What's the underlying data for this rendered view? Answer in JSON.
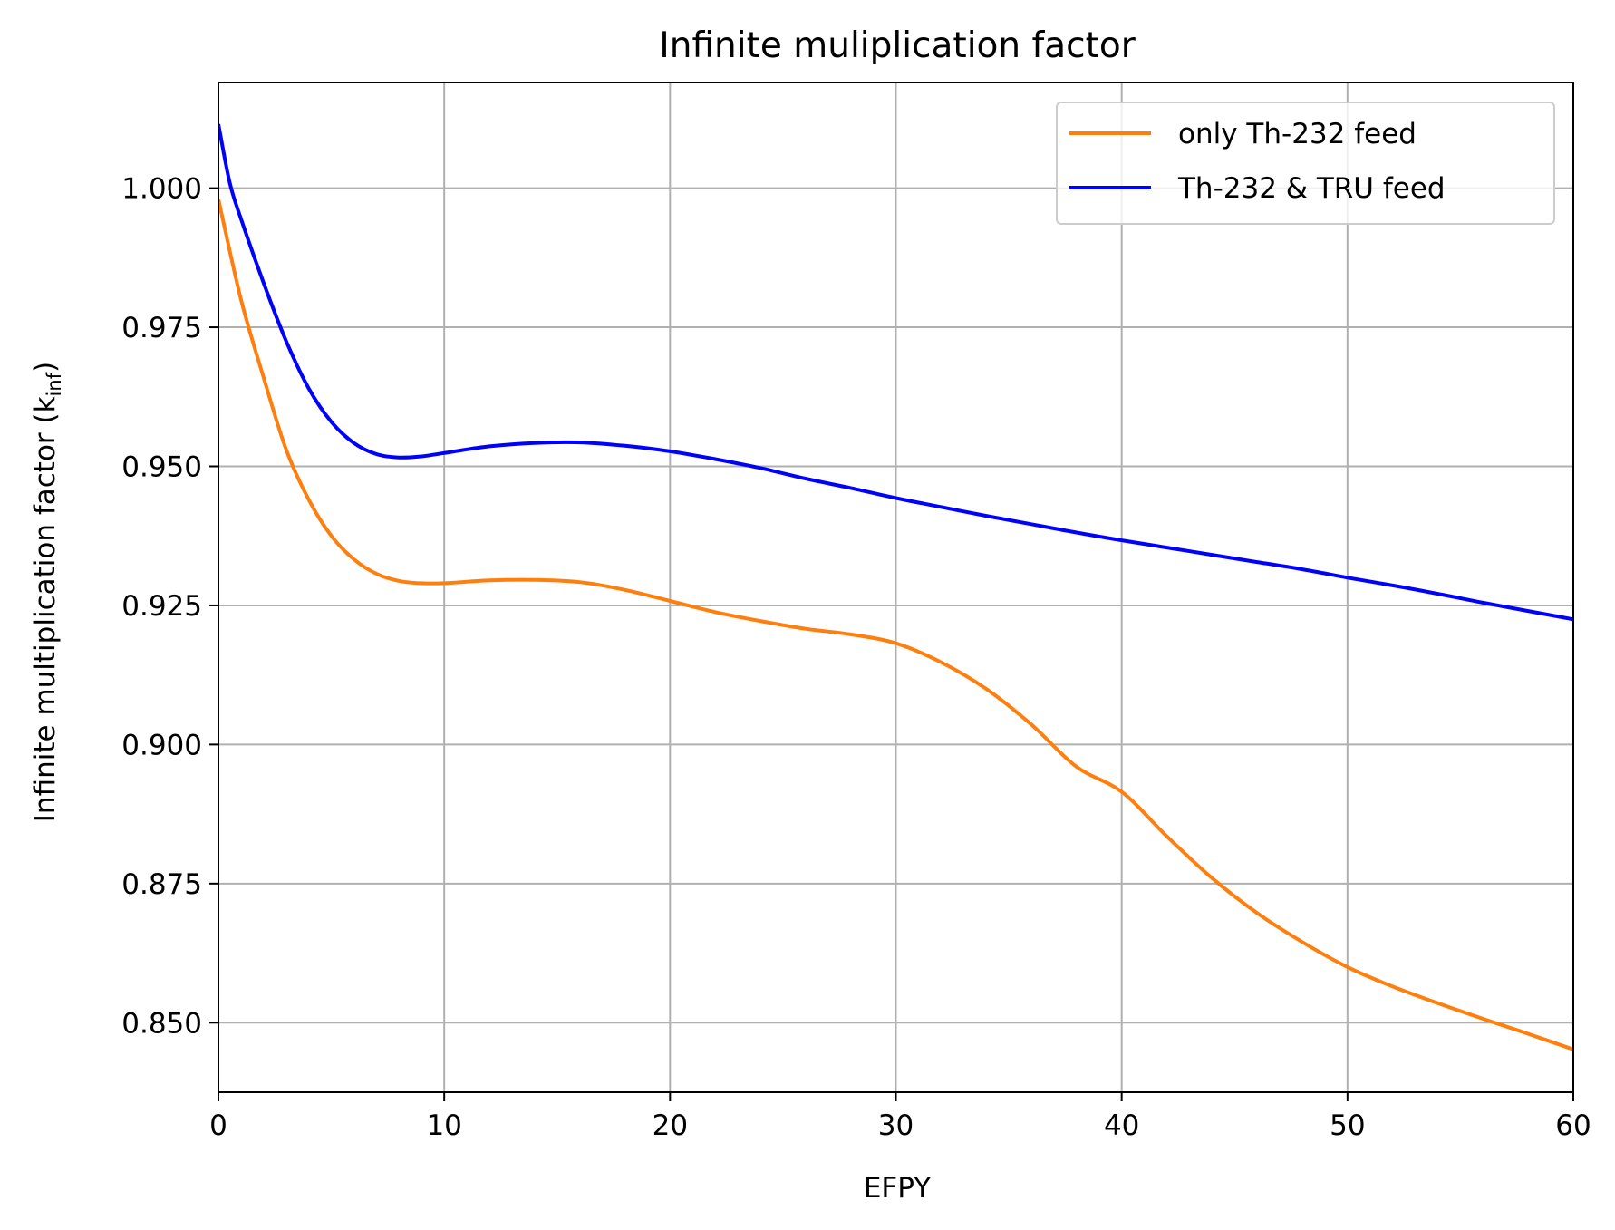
{
  "chart_data": {
    "type": "line",
    "title": "Infinite muliplication factor",
    "xlabel": "EFPY",
    "ylabel": "Infinite multiplication factor (k",
    "ylabel_sub": "inf",
    "ylabel_close": ")",
    "xlim": [
      0,
      60
    ],
    "ylim": [
      0.8375,
      1.019
    ],
    "xticks": [
      0,
      10,
      20,
      30,
      40,
      50,
      60
    ],
    "xtick_labels": [
      "0",
      "10",
      "20",
      "30",
      "40",
      "50",
      "60"
    ],
    "yticks": [
      0.85,
      0.875,
      0.9,
      0.925,
      0.95,
      0.975,
      1.0
    ],
    "ytick_labels": [
      "0.850",
      "0.875",
      "0.900",
      "0.925",
      "0.950",
      "0.975",
      "1.000"
    ],
    "grid": true,
    "legend_position": "top-right",
    "series": [
      {
        "name": "only Th-232 feed",
        "color": "#ff7f0e",
        "points": [
          [
            0,
            0.998
          ],
          [
            1,
            0.98
          ],
          [
            2,
            0.966
          ],
          [
            3,
            0.953
          ],
          [
            4,
            0.944
          ],
          [
            5,
            0.9375
          ],
          [
            6,
            0.9333
          ],
          [
            7,
            0.9307
          ],
          [
            8,
            0.9294
          ],
          [
            9,
            0.929
          ],
          [
            10,
            0.929
          ],
          [
            12,
            0.9295
          ],
          [
            14,
            0.9296
          ],
          [
            16,
            0.9292
          ],
          [
            18,
            0.9278
          ],
          [
            20,
            0.9258
          ],
          [
            22,
            0.9238
          ],
          [
            24,
            0.9222
          ],
          [
            26,
            0.9208
          ],
          [
            28,
            0.9198
          ],
          [
            30,
            0.9182
          ],
          [
            32,
            0.9148
          ],
          [
            34,
            0.91
          ],
          [
            36,
            0.9036
          ],
          [
            38,
            0.896
          ],
          [
            40,
            0.8915
          ],
          [
            42,
            0.8835
          ],
          [
            44,
            0.876
          ],
          [
            46,
            0.8697
          ],
          [
            48,
            0.8645
          ],
          [
            50,
            0.86
          ],
          [
            52,
            0.8565
          ],
          [
            54,
            0.8535
          ],
          [
            56,
            0.8507
          ],
          [
            58,
            0.848
          ],
          [
            60,
            0.8452
          ]
        ]
      },
      {
        "name": "Th-232 & TRU feed",
        "color": "#0000ff",
        "points": [
          [
            0,
            1.0115
          ],
          [
            0.5,
            1.001
          ],
          [
            1,
            0.9945
          ],
          [
            2,
            0.983
          ],
          [
            3,
            0.9725
          ],
          [
            4,
            0.964
          ],
          [
            5,
            0.958
          ],
          [
            6,
            0.9542
          ],
          [
            7,
            0.9522
          ],
          [
            8,
            0.9516
          ],
          [
            9,
            0.9518
          ],
          [
            10,
            0.9524
          ],
          [
            12,
            0.9536
          ],
          [
            14,
            0.9542
          ],
          [
            16,
            0.9543
          ],
          [
            18,
            0.9537
          ],
          [
            20,
            0.9527
          ],
          [
            22,
            0.9513
          ],
          [
            24,
            0.9497
          ],
          [
            26,
            0.9478
          ],
          [
            28,
            0.9461
          ],
          [
            30,
            0.9443
          ],
          [
            32,
            0.9427
          ],
          [
            34,
            0.9411
          ],
          [
            36,
            0.9396
          ],
          [
            38,
            0.9381
          ],
          [
            40,
            0.9367
          ],
          [
            42,
            0.9354
          ],
          [
            44,
            0.9341
          ],
          [
            46,
            0.9328
          ],
          [
            48,
            0.9315
          ],
          [
            50,
            0.93
          ],
          [
            52,
            0.9286
          ],
          [
            54,
            0.9271
          ],
          [
            56,
            0.9255
          ],
          [
            58,
            0.924
          ],
          [
            60,
            0.9225
          ]
        ]
      }
    ]
  }
}
